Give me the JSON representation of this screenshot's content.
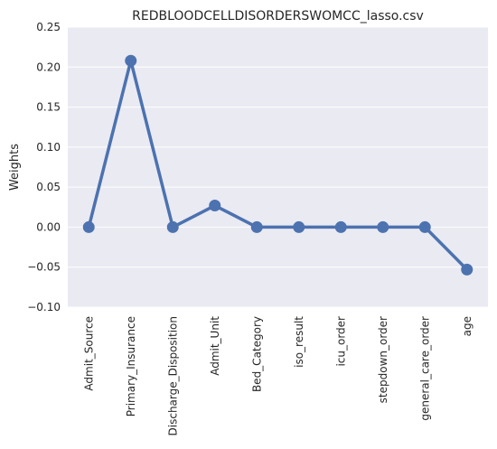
{
  "chart_data": {
    "type": "line",
    "title": "REDBLOODCELLDISORDERSWOMCC_lasso.csv",
    "xlabel": "",
    "ylabel": "Weights",
    "categories": [
      "Admit_Source",
      "Primary_Insurance",
      "Discharge_Disposition",
      "Admit_Unit",
      "Bed_Category",
      "iso_result",
      "icu_order",
      "stepdown_order",
      "general_care_order",
      "age"
    ],
    "series": [
      {
        "values": [
          0.0,
          0.208,
          0.0,
          0.027,
          0.0,
          0.0,
          0.0,
          0.0,
          0.0,
          -0.053
        ]
      }
    ],
    "ylim": [
      -0.1,
      0.25
    ],
    "yticks": [
      "−0.10",
      "−0.05",
      "0.00",
      "0.05",
      "0.10",
      "0.15",
      "0.20",
      "0.25"
    ],
    "ytick_values": [
      -0.1,
      -0.05,
      0.0,
      0.05,
      0.1,
      0.15,
      0.2,
      0.25
    ],
    "grid": true,
    "colors": {
      "background": "#eaeaf2",
      "grid": "#ffffff",
      "line": "#4c72b0"
    }
  }
}
